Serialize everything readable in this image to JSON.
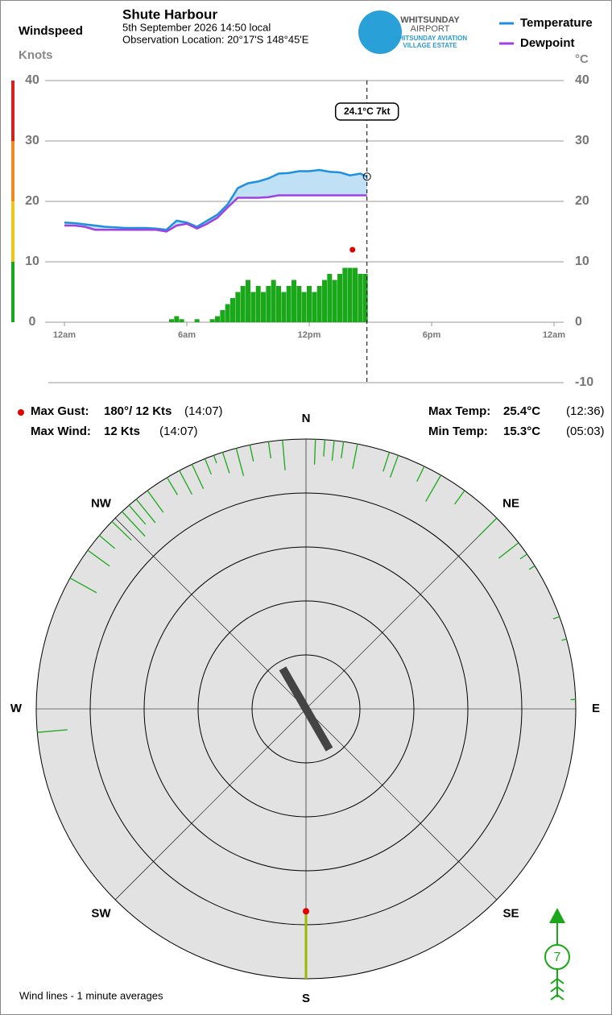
{
  "header": {
    "title": "Shute Harbour",
    "date": "5th September 2026  14:50 local",
    "location": "Observation Location: 20°17'S 148°45'E",
    "logo": [
      "WHITSUNDAY",
      "AIRPORT",
      "WHITSUNDAY AVIATION",
      "VILLAGE ESTATE"
    ]
  },
  "stats": {
    "max_gust": {
      "label": "Max Gust:",
      "value": "180°/ 12 Kts",
      "time": "(14:07)"
    },
    "max_wind": {
      "label": "Max Wind:",
      "value": "12 Kts",
      "time": "(14:07)"
    },
    "max_temp": {
      "label": "Max Temp:",
      "value": "25.4°C",
      "time": "(12:36)"
    },
    "min_temp": {
      "label": "Min Temp:",
      "value": "15.3°C",
      "time": "(05:03)"
    }
  },
  "footer": "Wind lines - 1 minute averages",
  "chart_data": [
    {
      "type": "line",
      "y_label": "Windspeed",
      "y_units": "Knots",
      "y2_units": "°C",
      "grid": true,
      "legend": "top-right",
      "xlim": [
        0,
        24
      ],
      "xticks": [
        {
          "value": 0,
          "label": "12am"
        },
        {
          "value": 6,
          "label": "6am"
        },
        {
          "value": 12,
          "label": "12pm"
        },
        {
          "value": 18,
          "label": "6pm"
        },
        {
          "value": 24,
          "label": "12am"
        }
      ],
      "ylim": [
        0,
        40
      ],
      "yticks": [
        0,
        10,
        20,
        30,
        40
      ],
      "y2lim": [
        -10,
        40
      ],
      "y2ticks": [
        -10,
        0,
        10,
        20,
        30,
        40
      ],
      "x": [
        0,
        0.5,
        1,
        1.5,
        2,
        2.5,
        3,
        3.5,
        4,
        4.5,
        5,
        5.5,
        6,
        6.5,
        7,
        7.5,
        8,
        8.5,
        9,
        9.5,
        10,
        10.5,
        11,
        11.5,
        12,
        12.5,
        13,
        13.5,
        14,
        14.5,
        14.83
      ],
      "series": [
        {
          "name": "Temperature",
          "color": "#1f8fdf",
          "axis": "y2",
          "values": [
            16.5,
            16.4,
            16.2,
            16.0,
            15.8,
            15.7,
            15.6,
            15.6,
            15.6,
            15.5,
            15.3,
            16.8,
            16.5,
            15.8,
            16.8,
            17.8,
            19.5,
            22.2,
            23.0,
            23.3,
            23.8,
            24.6,
            24.7,
            25.0,
            25.0,
            25.2,
            24.9,
            24.8,
            24.3,
            24.6,
            24.1
          ]
        },
        {
          "name": "Dewpoint",
          "color": "#a040e0",
          "axis": "y2",
          "values": [
            16.0,
            16.0,
            15.8,
            15.3,
            15.3,
            15.3,
            15.3,
            15.3,
            15.3,
            15.3,
            15.0,
            16.0,
            16.3,
            15.5,
            16.3,
            17.3,
            19.0,
            20.6,
            20.6,
            20.6,
            20.7,
            21.0,
            21.0,
            21.0,
            21.0,
            21.0,
            21.0,
            21.0,
            21.0,
            21.0,
            21.0
          ]
        }
      ],
      "fill_color": "#bfe0f5",
      "bars": {
        "color": "#1aa81a",
        "x": [
          5.25,
          5.5,
          5.75,
          6,
          6.25,
          6.5,
          6.75,
          7,
          7.25,
          7.5,
          7.75,
          8,
          8.25,
          8.5,
          8.75,
          9,
          9.25,
          9.5,
          9.75,
          10,
          10.25,
          10.5,
          10.75,
          11,
          11.25,
          11.5,
          11.75,
          12,
          12.25,
          12.5,
          12.75,
          13,
          13.25,
          13.5,
          13.75,
          14,
          14.25,
          14.5,
          14.75
        ],
        "values": [
          0.5,
          1,
          0.5,
          0,
          0,
          0.5,
          0,
          0,
          0.5,
          1,
          2,
          3,
          4,
          5,
          6,
          7,
          5,
          6,
          5,
          6,
          7,
          6,
          5,
          6,
          7,
          6,
          5,
          6,
          5,
          6,
          7,
          8,
          7,
          8,
          9,
          9,
          9,
          8,
          8
        ]
      },
      "gust_marker": {
        "x": 14.12,
        "value": 12,
        "color": "#e00000"
      },
      "annotation": {
        "x": 14.83,
        "label": "24.1°C  7kt"
      }
    },
    {
      "type": "polar",
      "rlim": [
        0,
        16
      ],
      "rticks": [
        3.2,
        6.4,
        9.6,
        12.8,
        16
      ],
      "direction_labels": [
        {
          "value": 0,
          "label": "N"
        },
        {
          "value": 45,
          "label": "NE"
        },
        {
          "value": 90,
          "label": "E"
        },
        {
          "value": 135,
          "label": "SE"
        },
        {
          "value": 180,
          "label": "S"
        },
        {
          "value": 225,
          "label": "SW"
        },
        {
          "value": 270,
          "label": "W"
        },
        {
          "value": 315,
          "label": "NW"
        }
      ],
      "lines": {
        "color": "#1aa81a",
        "directions": [
          2,
          4,
          6,
          8,
          11,
          18,
          20,
          26,
          30,
          36,
          45,
          52,
          55,
          58,
          70,
          75,
          88,
          265,
          299,
          306,
          310,
          314,
          317,
          319,
          321,
          324,
          329,
          332,
          335,
          338,
          340,
          342,
          345,
          348,
          352,
          355
        ],
        "values": [
          1.5,
          1,
          1.2,
          1,
          1.5,
          1.2,
          1.4,
          1,
          1.8,
          1,
          1.5,
          1.5,
          0.5,
          0.4,
          0.4,
          0.3,
          0.3,
          1.8,
          1.8,
          1.6,
          1.2,
          1.6,
          2,
          1.5,
          1.8,
          1.6,
          1.2,
          1.6,
          1.6,
          1,
          0.5,
          1.3,
          1.7,
          1,
          1,
          1.8
        ]
      },
      "gust": {
        "direction": 180,
        "value": 12,
        "color": "#e00000"
      },
      "bar_direction": 150,
      "current_speed": 7
    }
  ]
}
